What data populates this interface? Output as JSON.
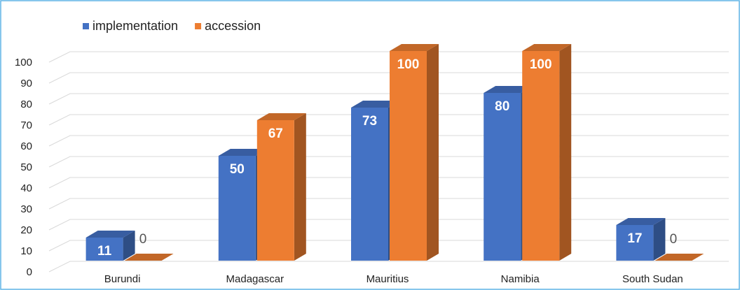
{
  "chart_data": {
    "type": "bar3d",
    "categories": [
      "Burundi",
      "Madagascar",
      "Mauritius",
      "Namibia",
      "South Sudan"
    ],
    "series": [
      {
        "name": "implementation",
        "color": "#4472c4",
        "values": [
          11,
          50,
          73,
          80,
          17
        ]
      },
      {
        "name": "accession",
        "color": "#ed7d31",
        "values": [
          0,
          67,
          100,
          100,
          0
        ]
      }
    ],
    "ylim": [
      0,
      100
    ],
    "yticks": [
      0,
      10,
      20,
      30,
      40,
      50,
      60,
      70,
      80,
      90,
      100
    ],
    "grid": true,
    "legend": "top"
  }
}
